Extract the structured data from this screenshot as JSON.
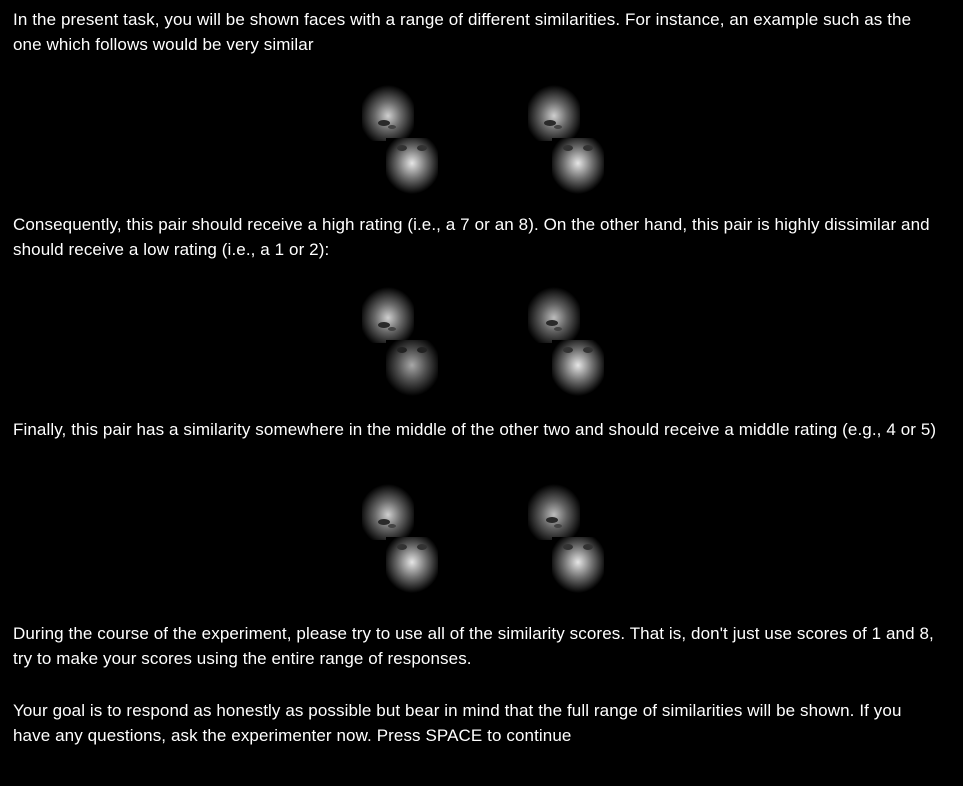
{
  "instructions": {
    "intro": "In the present task, you will be shown faces with a range of different similarities. For instance, an example such as the one which follows would be very similar",
    "high_rating": "Consequently, this pair should receive a high rating (i.e., a 7 or an 8). On the other hand, this pair is highly dissimilar and should receive a low rating (i.e., a 1 or 2):",
    "middle_rating": "Finally, this pair has a similarity somewhere in the middle of the other two and should receive a middle rating (e.g., 4 or 5)",
    "use_all_scores": "During the course of the experiment, please try to use all of the similarity scores. That is, don't just use scores of 1 and 8, try to make your scores using the entire range of responses.",
    "goal": "Your goal is to respond as honestly as possible but bear in mind that the full range of similarities will be shown. If you have any questions, ask the experimenter now. Press SPACE to continue"
  },
  "examples": [
    {
      "label": "very-similar"
    },
    {
      "label": "highly-dissimilar"
    },
    {
      "label": "middle-similarity"
    }
  ],
  "colors": {
    "background": "#000000",
    "text": "#ffffff"
  }
}
